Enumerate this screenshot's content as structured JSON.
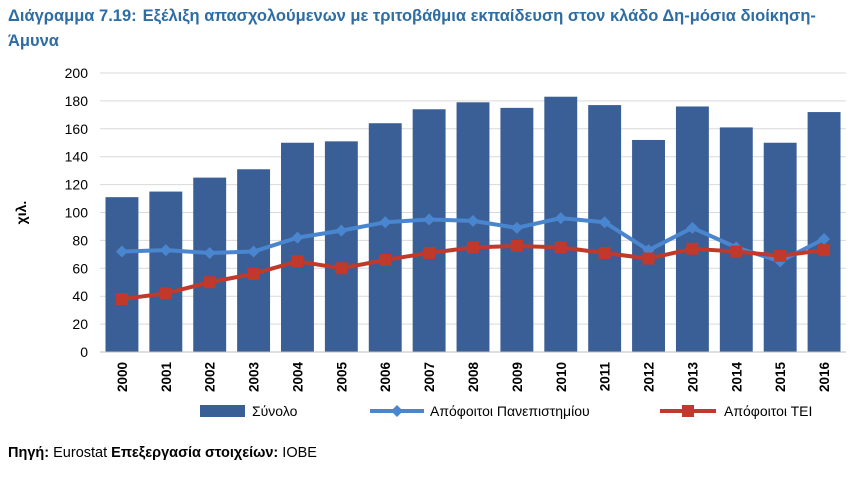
{
  "title": {
    "number": "Διάγραμμα 7.19:",
    "text": "Εξέλιξη απασχολούμενων με τριτοβάθμια εκπαίδευση στον κλάδο Δη-μόσια διοίκηση-Άμυνα"
  },
  "source": {
    "label": "Πηγή:",
    "origin": "Eurostat",
    "processing_label": "Επεξεργασία στοιχείων:",
    "processor": "ΙΟΒΕ"
  },
  "colors": {
    "bars": "#3a5f96",
    "line_university": "#4a86d0",
    "line_tei": "#c0392b",
    "grid": "#d9d9d9",
    "title": "#2e6da4"
  },
  "chart_data": {
    "type": "bar",
    "ylabel": "χιλ.",
    "xlabel": "",
    "ylim": [
      0,
      200
    ],
    "yticks": [
      0,
      20,
      40,
      60,
      80,
      100,
      120,
      140,
      160,
      180,
      200
    ],
    "grid": true,
    "legend_position": "bottom",
    "categories": [
      "2000",
      "2001",
      "2002",
      "2003",
      "2004",
      "2005",
      "2006",
      "2007",
      "2008",
      "2009",
      "2010",
      "2011",
      "2012",
      "2013",
      "2014",
      "2015",
      "2016"
    ],
    "series": [
      {
        "name": "Σύνολο",
        "kind": "bar",
        "values": [
          111,
          115,
          125,
          131,
          150,
          151,
          164,
          174,
          179,
          175,
          183,
          177,
          152,
          176,
          161,
          150,
          172
        ]
      },
      {
        "name": "Απόφοιτοι Πανεπιστημίου",
        "kind": "line",
        "marker": "diamond",
        "values": [
          72,
          73,
          71,
          72,
          82,
          87,
          93,
          95,
          94,
          89,
          96,
          93,
          73,
          89,
          75,
          65,
          81
        ]
      },
      {
        "name": "Απόφοιτοι ΤΕΙ",
        "kind": "line",
        "marker": "square",
        "values": [
          38,
          42,
          50,
          56,
          65,
          60,
          66,
          71,
          75,
          76,
          75,
          71,
          67,
          74,
          72,
          69,
          73
        ]
      }
    ]
  }
}
